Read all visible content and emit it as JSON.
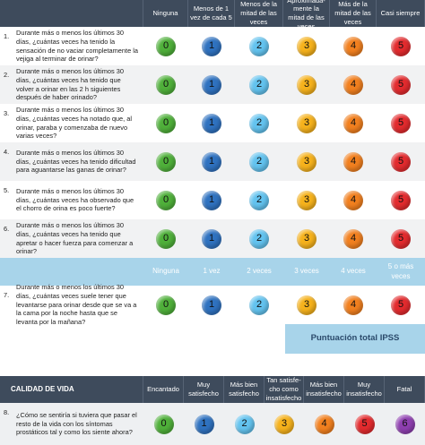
{
  "header": {
    "columns": [
      "Ninguna",
      "Menos de 1 vez de cada 5",
      "Menos de la mitad de las veces",
      "Aproxima­da­mente la mitad de las veces",
      "Más de la mitad de las veces",
      "Casi siempre"
    ]
  },
  "questions": [
    {
      "number": "1.",
      "text": "Durante más o menos los últimos 30 días, ¿cuántas veces ha tenido la sensación de no vaciar completamente la vejiga al terminar de orinar?",
      "scores": [
        0,
        1,
        2,
        3,
        4,
        5
      ]
    },
    {
      "number": "2.",
      "text": "Durante más o menos los últimos 30 días, ¿cuántas veces ha tenido que volver a orinar en las 2 h siguientes después de haber orinado?",
      "scores": [
        0,
        1,
        2,
        3,
        4,
        5
      ]
    },
    {
      "number": "3.",
      "text": "Durante más o menos los últimos 30 días, ¿cuántas veces ha notado que, al orinar, paraba y comenzaba de nuevo varias veces?",
      "scores": [
        0,
        1,
        2,
        3,
        4,
        5
      ]
    },
    {
      "number": "4.",
      "text": "Durante más o menos los últimos 30 días, ¿cuántas veces ha tenido dificultad para aguantarse las ganas de orinar?",
      "scores": [
        0,
        1,
        2,
        3,
        4,
        5
      ]
    },
    {
      "number": "5.",
      "text": "Durante más o menos los últimos 30 días, ¿cuántas veces ha observado que el chorro de orina es poco fuerte?",
      "scores": [
        0,
        1,
        2,
        3,
        4,
        5
      ]
    },
    {
      "number": "6.",
      "text": "Durante más o menos los últimos 30 días, ¿cuántas veces ha tenido que apretar o hacer fuerza para comenzar a orinar?",
      "scores": [
        0,
        1,
        2,
        3,
        4,
        5
      ]
    }
  ],
  "nocturia_header": [
    "Ninguna",
    "1 vez",
    "2 veces",
    "3 veces",
    "4 veces",
    "5 o más veces"
  ],
  "nocturia": {
    "number": "7.",
    "text": "Durante más o menos los últimos 30 días, ¿cuántas veces suele tener que levantarse para orinar desde que se va a la cama por la noche hasta que se levanta por la mañana?",
    "scores": [
      0,
      1,
      2,
      3,
      4,
      5
    ]
  },
  "total_label": "Puntuación total IPSS",
  "quality": {
    "title": "CALIDAD DE VIDA",
    "columns": [
      "Encantado",
      "Muy satisfecho",
      "Más bien satisfecho",
      "Tan satisfe­cho como insatisfecho",
      "Más bien insatisfecho",
      "Muy insatisfecho",
      "Fatal"
    ],
    "question": {
      "number": "8.",
      "text": "¿Cómo se sentiría si tuviera que pasar el resto de la vida con los síntomas prostáticos tal y como los siente ahora?",
      "scores": [
        0,
        1,
        2,
        3,
        4,
        5,
        6
      ]
    }
  }
}
